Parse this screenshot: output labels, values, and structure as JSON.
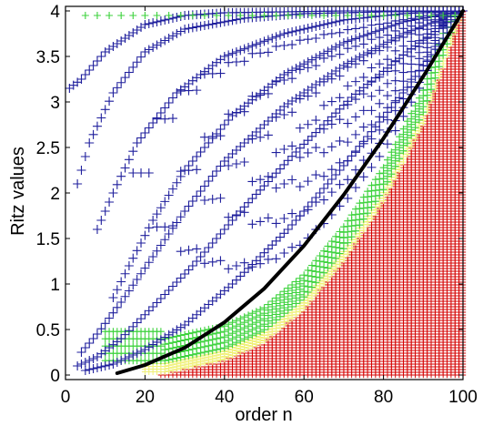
{
  "chart_data": {
    "type": "scatter",
    "title": "",
    "xlabel": "order n",
    "ylabel": "Ritz values",
    "xlim": [
      0,
      100
    ],
    "ylim": [
      -0.05,
      4.05
    ],
    "xticks": [
      0,
      20,
      40,
      60,
      80,
      100
    ],
    "xtick_labels": [
      "0",
      "20",
      "40",
      "60",
      "80",
      "100"
    ],
    "yticks": [
      0,
      0.5,
      1,
      1.5,
      2,
      2.5,
      3,
      3.5,
      4
    ],
    "ytick_labels": [
      "0",
      "0.5",
      "1",
      "1.5",
      "2",
      "2.5",
      "3",
      "3.5",
      "4"
    ],
    "grid": false,
    "legend": "none",
    "marker": "+",
    "series": [
      {
        "color": "#d40000",
        "description_values": "converged eigenvalue crosses filling lower-right region",
        "boundary_n": [
          25,
          40,
          50,
          60,
          70,
          80,
          90,
          100
        ],
        "boundary_y": [
          0.02,
          0.16,
          0.36,
          0.72,
          1.25,
          1.9,
          2.75,
          4.0
        ]
      },
      {
        "color": "#f0f078",
        "band_offset": 0.12
      },
      {
        "color": "#3cd23c",
        "band_offset": 0.3
      },
      {
        "color": "#1e1e9c",
        "curves": [
          {
            "n": [
              1,
              4,
              10,
              20,
              30,
              40,
              55,
              70,
              85,
              100
            ],
            "y": [
              3.15,
              3.25,
              3.55,
              3.85,
              3.95,
              3.98,
              3.99,
              4.0,
              4.0,
              4.0
            ]
          },
          {
            "n": [
              3,
              6,
              12,
              20,
              30,
              45,
              60,
              80,
              100
            ],
            "y": [
              2.1,
              2.55,
              3.1,
              3.55,
              3.8,
              3.92,
              3.97,
              3.99,
              4.0
            ]
          },
          {
            "n": [
              8,
              12,
              18,
              28,
              40,
              55,
              70,
              85,
              100
            ],
            "y": [
              1.6,
              2.0,
              2.55,
              3.1,
              3.5,
              3.75,
              3.9,
              3.97,
              4.0
            ]
          },
          {
            "n": [
              12,
              16,
              22,
              30,
              42,
              55,
              70,
              85,
              100
            ],
            "y": [
              0.85,
              1.2,
              1.7,
              2.25,
              2.85,
              3.3,
              3.65,
              3.88,
              4.0
            ]
          },
          {
            "n": [
              4,
              8,
              14,
              22,
              30,
              40,
              55,
              70,
              85,
              100
            ],
            "y": [
              0.25,
              0.45,
              0.8,
              1.3,
              1.8,
              2.35,
              2.95,
              3.4,
              3.75,
              4.0
            ]
          },
          {
            "n": [
              3,
              8,
              14,
              22,
              32,
              44,
              58,
              72,
              86,
              100
            ],
            "y": [
              0.1,
              0.2,
              0.4,
              0.75,
              1.2,
              1.8,
              2.45,
              3.05,
              3.55,
              4.0
            ]
          },
          {
            "n": [
              5,
              12,
              20,
              30,
              42,
              56,
              70,
              85,
              100
            ],
            "y": [
              0.05,
              0.12,
              0.28,
              0.55,
              1.0,
              1.6,
              2.3,
              3.1,
              4.0
            ]
          }
        ]
      },
      {
        "color": "#000000",
        "description_values": "solid reference curve",
        "n": [
          13,
          20,
          30,
          40,
          50,
          60,
          70,
          80,
          90,
          100
        ],
        "y": [
          0.02,
          0.11,
          0.3,
          0.58,
          0.95,
          1.42,
          1.98,
          2.6,
          3.28,
          4.0
        ]
      }
    ]
  }
}
